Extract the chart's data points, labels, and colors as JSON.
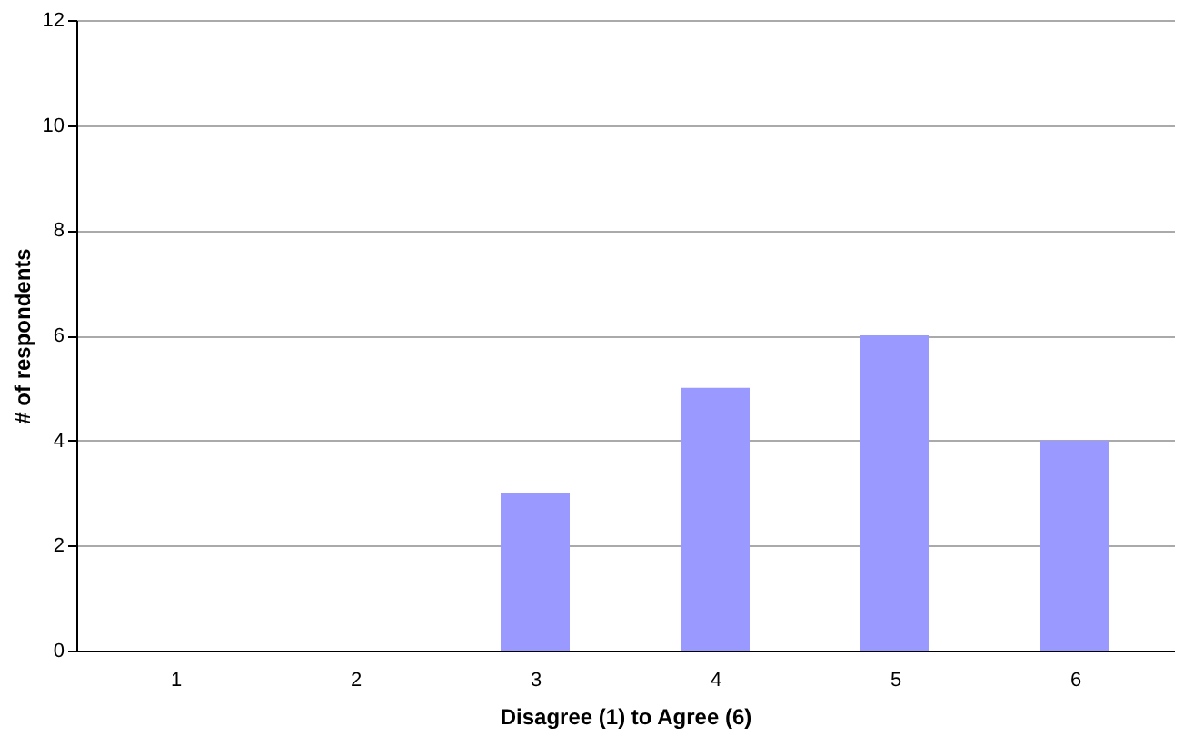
{
  "chart_data": {
    "type": "bar",
    "xlabel": "Disagree (1) to Agree (6)",
    "ylabel": "# of respondents",
    "categories": [
      "1",
      "2",
      "3",
      "4",
      "5",
      "6"
    ],
    "values": [
      0,
      0,
      3,
      5,
      6,
      4
    ],
    "color": "#9999ff",
    "ylim": [
      0,
      12
    ],
    "yticks": [
      0,
      2,
      4,
      6,
      8,
      10,
      12
    ],
    "grid": "y"
  }
}
